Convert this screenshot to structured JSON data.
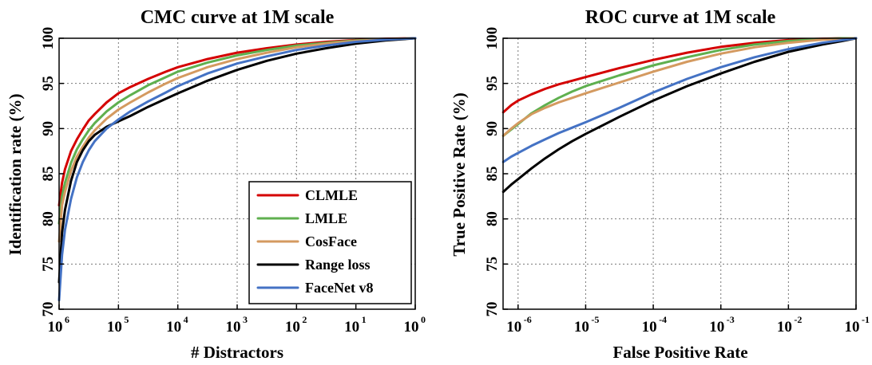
{
  "chart_data": [
    {
      "type": "line",
      "title": "CMC curve at 1M scale",
      "xlabel": "# Distractors",
      "ylabel": "Identification rate (%)",
      "x_scale": "log",
      "x_reversed": true,
      "xlim": [
        1000000,
        1
      ],
      "ylim": [
        70,
        100
      ],
      "grid": true,
      "legend_position": "bottom-right",
      "xticks": [
        {
          "base": "10",
          "exp": "6"
        },
        {
          "base": "10",
          "exp": "5"
        },
        {
          "base": "10",
          "exp": "4"
        },
        {
          "base": "10",
          "exp": "3"
        },
        {
          "base": "10",
          "exp": "2"
        },
        {
          "base": "10",
          "exp": "1"
        },
        {
          "base": "10",
          "exp": "0"
        }
      ],
      "yticks": [
        "70",
        "75",
        "80",
        "85",
        "90",
        "95",
        "100"
      ],
      "x": [
        6,
        5.95,
        5.9,
        5.8,
        5.7,
        5.6,
        5.5,
        5.4,
        5.2,
        5,
        4.8,
        4.5,
        4.2,
        4,
        3.5,
        3,
        2.5,
        2,
        1.5,
        1,
        0.5,
        0
      ],
      "x_note": "x values are log10(# distractors)",
      "series": [
        {
          "name": "CLMLE",
          "color": "#d40000",
          "values": [
            81.5,
            84,
            85.5,
            87.5,
            88.8,
            89.9,
            90.9,
            91.6,
            92.9,
            93.9,
            94.6,
            95.5,
            96.3,
            96.8,
            97.7,
            98.4,
            98.9,
            99.3,
            99.6,
            99.8,
            99.95,
            100
          ]
        },
        {
          "name": "LMLE",
          "color": "#5fb04f",
          "values": [
            79.5,
            82.5,
            84,
            86.2,
            87.7,
            88.8,
            89.8,
            90.6,
            91.9,
            92.9,
            93.7,
            94.8,
            95.7,
            96.3,
            97.3,
            98.1,
            98.7,
            99.2,
            99.5,
            99.75,
            99.9,
            100
          ]
        },
        {
          "name": "CosFace",
          "color": "#d49a60",
          "values": [
            77.5,
            81.5,
            83,
            85.3,
            86.9,
            88,
            89,
            89.8,
            91.1,
            92.1,
            92.9,
            94,
            95,
            95.6,
            96.8,
            97.7,
            98.4,
            99,
            99.4,
            99.7,
            99.9,
            100
          ]
        },
        {
          "name": "Range loss",
          "color": "#000000",
          "values": [
            73,
            78.5,
            81,
            84.2,
            86.3,
            87.6,
            88.6,
            89.3,
            90.2,
            90.8,
            91.4,
            92.4,
            93.3,
            93.9,
            95.3,
            96.5,
            97.5,
            98.3,
            98.9,
            99.4,
            99.75,
            100
          ]
        },
        {
          "name": "FaceNet v8",
          "color": "#4472c4",
          "values": [
            71,
            76,
            78.8,
            82.2,
            84.6,
            86.3,
            87.6,
            88.6,
            90,
            91,
            91.9,
            93,
            94,
            94.7,
            96.1,
            97.2,
            98,
            98.7,
            99.2,
            99.6,
            99.85,
            100
          ]
        }
      ]
    },
    {
      "type": "line",
      "title": "ROC curve at 1M scale",
      "xlabel": "False Positive Rate",
      "ylabel": "True Positive Rate (%)",
      "x_scale": "log",
      "xlim": [
        6e-07,
        0.1
      ],
      "ylim": [
        70,
        100
      ],
      "grid": true,
      "xticks": [
        {
          "base": "10",
          "exp": "-6"
        },
        {
          "base": "10",
          "exp": "-5"
        },
        {
          "base": "10",
          "exp": "-4"
        },
        {
          "base": "10",
          "exp": "-3"
        },
        {
          "base": "10",
          "exp": "-2"
        },
        {
          "base": "10",
          "exp": "-1"
        }
      ],
      "yticks": [
        "70",
        "75",
        "80",
        "85",
        "90",
        "95",
        "100"
      ],
      "x": [
        -6.22,
        -6.1,
        -6,
        -5.8,
        -5.6,
        -5.4,
        -5.2,
        -5,
        -4.5,
        -4,
        -3.5,
        -3,
        -2.5,
        -2,
        -1.5,
        -1.2,
        -1
      ],
      "x_note": "x values are log10(false positive rate)",
      "series": [
        {
          "name": "CLMLE",
          "color": "#d40000",
          "values": [
            91.8,
            92.6,
            93.1,
            93.8,
            94.4,
            94.9,
            95.3,
            95.7,
            96.7,
            97.6,
            98.4,
            99.05,
            99.5,
            99.8,
            99.95,
            100,
            100
          ]
        },
        {
          "name": "LMLE",
          "color": "#5fb04f",
          "values": [
            89.2,
            89.9,
            90.5,
            91.7,
            92.6,
            93.4,
            94.1,
            94.7,
            95.9,
            97,
            97.9,
            98.7,
            99.3,
            99.7,
            99.9,
            100,
            100
          ]
        },
        {
          "name": "CosFace",
          "color": "#d49a60",
          "values": [
            89.2,
            90,
            90.6,
            91.6,
            92.3,
            92.9,
            93.4,
            93.9,
            95.1,
            96.3,
            97.4,
            98.3,
            99,
            99.5,
            99.85,
            99.95,
            100
          ]
        },
        {
          "name": "Range loss",
          "color": "#000000",
          "values": [
            83,
            83.8,
            84.4,
            85.6,
            86.7,
            87.7,
            88.6,
            89.4,
            91.3,
            93.1,
            94.7,
            96.1,
            97.4,
            98.5,
            99.3,
            99.7,
            100
          ]
        },
        {
          "name": "FaceNet v8",
          "color": "#4472c4",
          "values": [
            86.3,
            86.9,
            87.3,
            88.1,
            88.8,
            89.5,
            90.1,
            90.7,
            92.3,
            94,
            95.5,
            96.8,
            97.9,
            98.8,
            99.5,
            99.8,
            100
          ]
        }
      ]
    }
  ]
}
